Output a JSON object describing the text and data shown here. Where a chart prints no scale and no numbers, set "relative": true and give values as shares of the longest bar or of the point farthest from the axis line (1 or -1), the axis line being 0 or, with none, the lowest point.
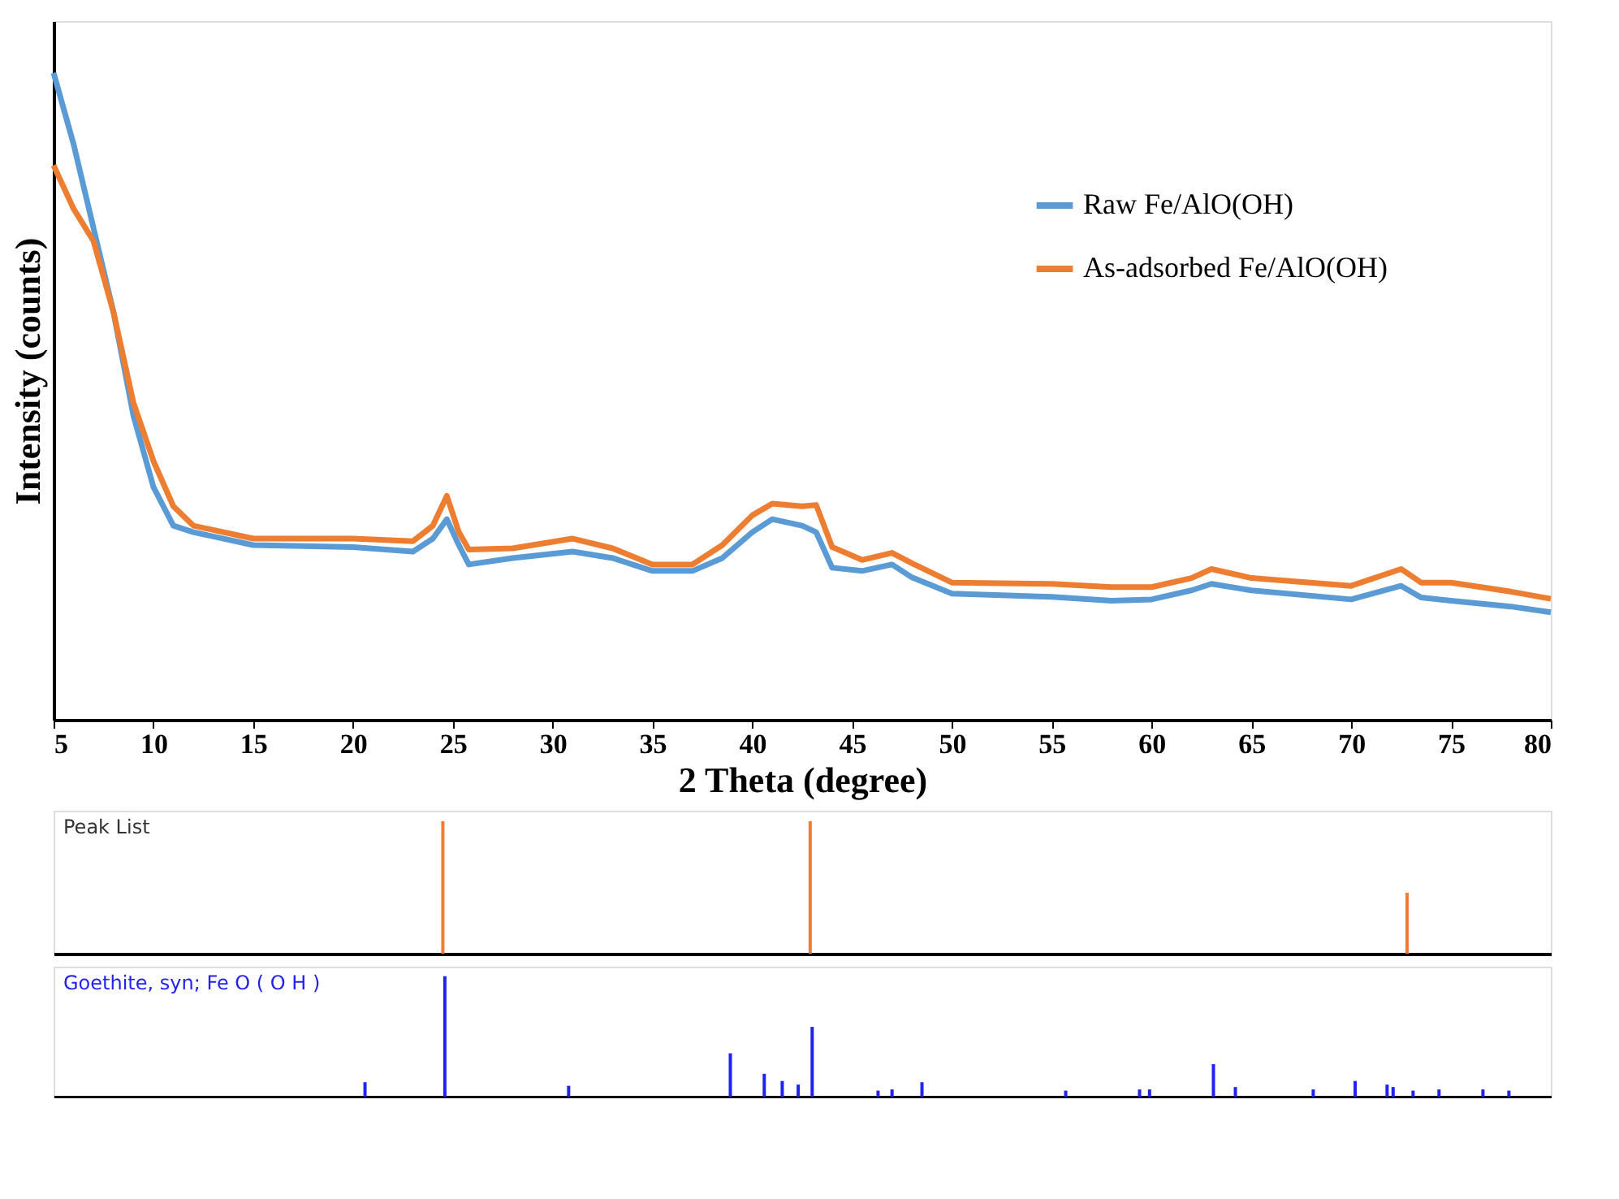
{
  "chart_data": [
    {
      "type": "line",
      "xlabel": "2 Theta (degree)",
      "ylabel": "Intensity (counts)",
      "relative": true,
      "legend": "top right",
      "line_style": "solid",
      "marker": "none",
      "grid": false,
      "xlim": [
        5,
        80
      ],
      "xticks": [
        5,
        10,
        15,
        20,
        25,
        30,
        35,
        40,
        45,
        50,
        55,
        60,
        65,
        70,
        75,
        80
      ],
      "x": [
        5,
        6,
        7,
        8,
        9,
        10,
        11,
        12,
        15,
        20,
        23,
        24,
        24.7,
        25.3,
        25.8,
        28,
        31,
        33,
        35,
        37,
        38.5,
        40,
        41,
        42.5,
        43.2,
        44,
        45.5,
        47,
        48,
        50,
        55,
        58,
        60,
        62,
        63,
        65,
        70,
        72.5,
        73.5,
        75,
        78,
        80
      ],
      "series": [
        {
          "name": "Raw Fe/AlO(OH)",
          "color": "#5b9bd5",
          "values": [
            1.0,
            0.89,
            0.76,
            0.63,
            0.47,
            0.36,
            0.3,
            0.29,
            0.27,
            0.267,
            0.26,
            0.28,
            0.31,
            0.27,
            0.24,
            0.25,
            0.26,
            0.25,
            0.23,
            0.23,
            0.25,
            0.29,
            0.31,
            0.3,
            0.29,
            0.235,
            0.23,
            0.24,
            0.22,
            0.195,
            0.19,
            0.184,
            0.186,
            0.2,
            0.21,
            0.2,
            0.186,
            0.207,
            0.189,
            0.184,
            0.175,
            0.166
          ]
        },
        {
          "name": "As-adsorbed Fe/AlO(OH)",
          "color": "#ed7d31",
          "values": [
            0.857,
            0.79,
            0.74,
            0.63,
            0.49,
            0.4,
            0.33,
            0.3,
            0.28,
            0.28,
            0.276,
            0.3,
            0.346,
            0.29,
            0.263,
            0.265,
            0.28,
            0.265,
            0.24,
            0.24,
            0.27,
            0.316,
            0.334,
            0.33,
            0.332,
            0.267,
            0.247,
            0.258,
            0.242,
            0.212,
            0.21,
            0.205,
            0.205,
            0.219,
            0.233,
            0.219,
            0.207,
            0.233,
            0.212,
            0.212,
            0.198,
            0.187
          ]
        }
      ]
    },
    {
      "type": "bar",
      "title": "Peak List",
      "relative": true,
      "tick_labels": false,
      "xlim": [
        5,
        80
      ],
      "x": [
        24.5,
        42.9,
        72.8
      ],
      "series": [
        {
          "color": "#ed7d31",
          "values": [
            1,
            1,
            0.46
          ]
        }
      ]
    },
    {
      "type": "bar",
      "title": "Goethite, syn; Fe O ( O H )",
      "relative": true,
      "tick_labels": false,
      "xlim": [
        5,
        80
      ],
      "x": [
        20.6,
        24.6,
        30.8,
        38.9,
        40.6,
        41.5,
        42.3,
        43.0,
        46.3,
        47.0,
        48.5,
        55.7,
        59.4,
        59.9,
        63.1,
        64.2,
        68.1,
        70.2,
        71.8,
        72.1,
        73.1,
        74.4,
        76.6,
        77.9
      ],
      "series": [
        {
          "color": "#2222ee",
          "values": [
            0.12,
            1,
            0.09,
            0.36,
            0.19,
            0.13,
            0.1,
            0.58,
            0.05,
            0.06,
            0.12,
            0.05,
            0.06,
            0.06,
            0.27,
            0.08,
            0.06,
            0.13,
            0.1,
            0.08,
            0.05,
            0.06,
            0.06,
            0.05
          ]
        }
      ]
    }
  ]
}
